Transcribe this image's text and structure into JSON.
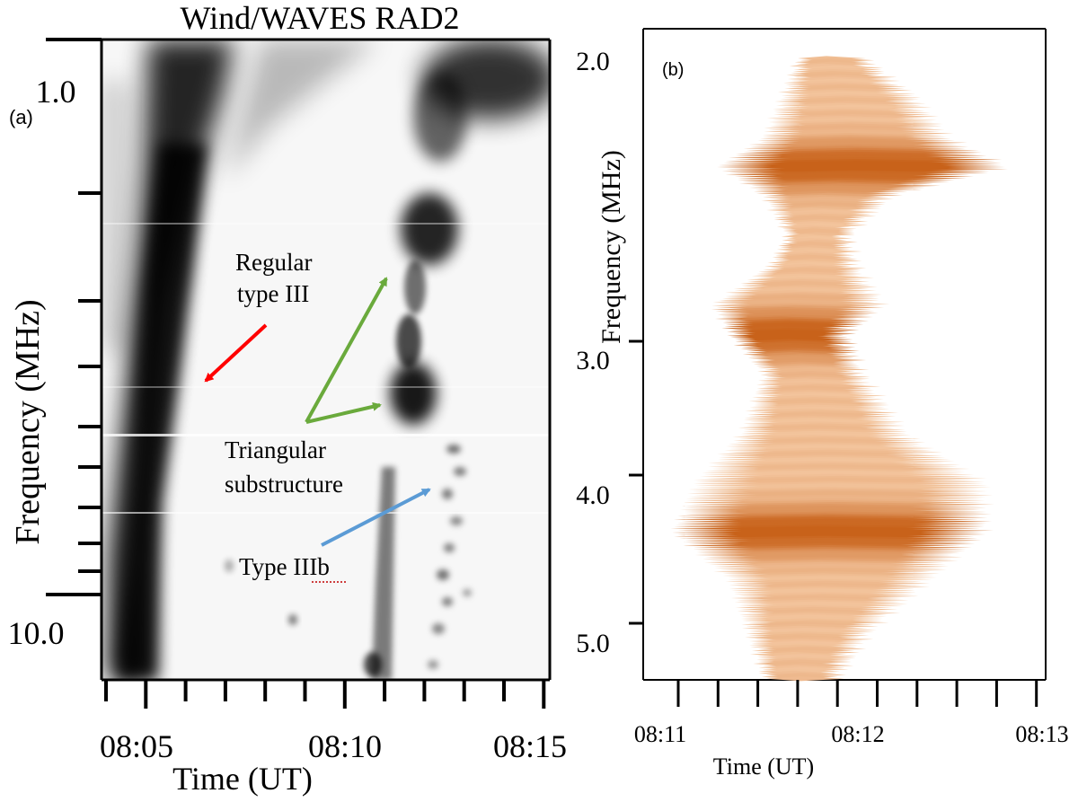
{
  "chart_data": [
    {
      "type": "heatmap",
      "panel_label": "(a)",
      "title": "Wind/WAVES RAD2",
      "xlabel": "Time (UT)",
      "ylabel": "Frequency (MHz)",
      "x_tick_labels": [
        "08:05",
        "08:10",
        "08:15"
      ],
      "y_tick_labels": [
        "1.0",
        "10.0"
      ],
      "y_scale": "log",
      "xlim": [
        "08:04",
        "08:15"
      ],
      "ylim_mhz": [
        0.95,
        15
      ],
      "colormap": "grayscale inverted (dark = intense)",
      "features": [
        {
          "name": "Regular type III",
          "time_range": [
            "08:04:40",
            "08:06:30"
          ],
          "freq_range_mhz": [
            1.0,
            14.0
          ]
        },
        {
          "name": "Triangular substructure",
          "time_range": [
            "08:10:50",
            "08:11:50"
          ],
          "freq_range_mhz": [
            2.5,
            4.0
          ]
        },
        {
          "name": "Type IIIb",
          "time_range": [
            "08:11:00",
            "08:12:30"
          ],
          "freq_range_mhz": [
            4.0,
            14.0
          ]
        }
      ],
      "annotations": [
        {
          "lines": [
            "Regular",
            "type III"
          ],
          "arrow_color": "#ff0000"
        },
        {
          "lines": [
            "Triangular",
            "substructure"
          ],
          "arrow_color": "#6aaa3c"
        },
        {
          "lines": [
            "Type IIIb"
          ],
          "arrow_color": "#5b9bd5"
        }
      ]
    },
    {
      "type": "area",
      "panel_label": "(b)",
      "xlabel": "Time (UT)",
      "ylabel": "Frequency (MHz)",
      "x_tick_labels": [
        "08:11",
        "08:12",
        "08:13"
      ],
      "y_tick_labels": [
        "2.0",
        "3.0",
        "4.0",
        "5.0"
      ],
      "xlim": [
        "08:11",
        "08:13"
      ],
      "ylim_mhz": [
        2.0,
        5.2
      ],
      "color_dark": "#c8621a",
      "color_light": "#f5c9a3",
      "envelope": [
        {
          "freq_mhz": 2.0,
          "start_ut": "08:11:42",
          "end_ut": "08:12:06"
        },
        {
          "freq_mhz": 2.2,
          "start_ut": "08:11:36",
          "end_ut": "08:12:24"
        },
        {
          "freq_mhz": 2.4,
          "start_ut": "08:11:30",
          "end_ut": "08:12:35"
        },
        {
          "freq_mhz": 2.55,
          "start_ut": "08:11:14",
          "end_ut": "08:12:56"
        },
        {
          "freq_mhz": 2.7,
          "start_ut": "08:11:30",
          "end_ut": "08:12:15"
        },
        {
          "freq_mhz": 2.9,
          "start_ut": "08:11:38",
          "end_ut": "08:12:00"
        },
        {
          "freq_mhz": 3.05,
          "start_ut": "08:11:32",
          "end_ut": "08:12:03"
        },
        {
          "freq_mhz": 3.25,
          "start_ut": "08:11:12",
          "end_ut": "08:12:12"
        },
        {
          "freq_mhz": 3.4,
          "start_ut": "08:11:18",
          "end_ut": "08:12:00"
        },
        {
          "freq_mhz": 3.6,
          "start_ut": "08:11:30",
          "end_ut": "08:12:05"
        },
        {
          "freq_mhz": 3.9,
          "start_ut": "08:11:22",
          "end_ut": "08:12:20"
        },
        {
          "freq_mhz": 4.15,
          "start_ut": "08:11:06",
          "end_ut": "08:12:48"
        },
        {
          "freq_mhz": 4.4,
          "start_ut": "08:10:58",
          "end_ut": "08:12:48"
        },
        {
          "freq_mhz": 4.65,
          "start_ut": "08:11:18",
          "end_ut": "08:12:28"
        },
        {
          "freq_mhz": 4.9,
          "start_ut": "08:11:24",
          "end_ut": "08:12:08"
        },
        {
          "freq_mhz": 5.15,
          "start_ut": "08:11:30",
          "end_ut": "08:11:56"
        }
      ],
      "intensity_peaks_mhz": [
        2.55,
        3.4,
        4.4
      ]
    }
  ]
}
